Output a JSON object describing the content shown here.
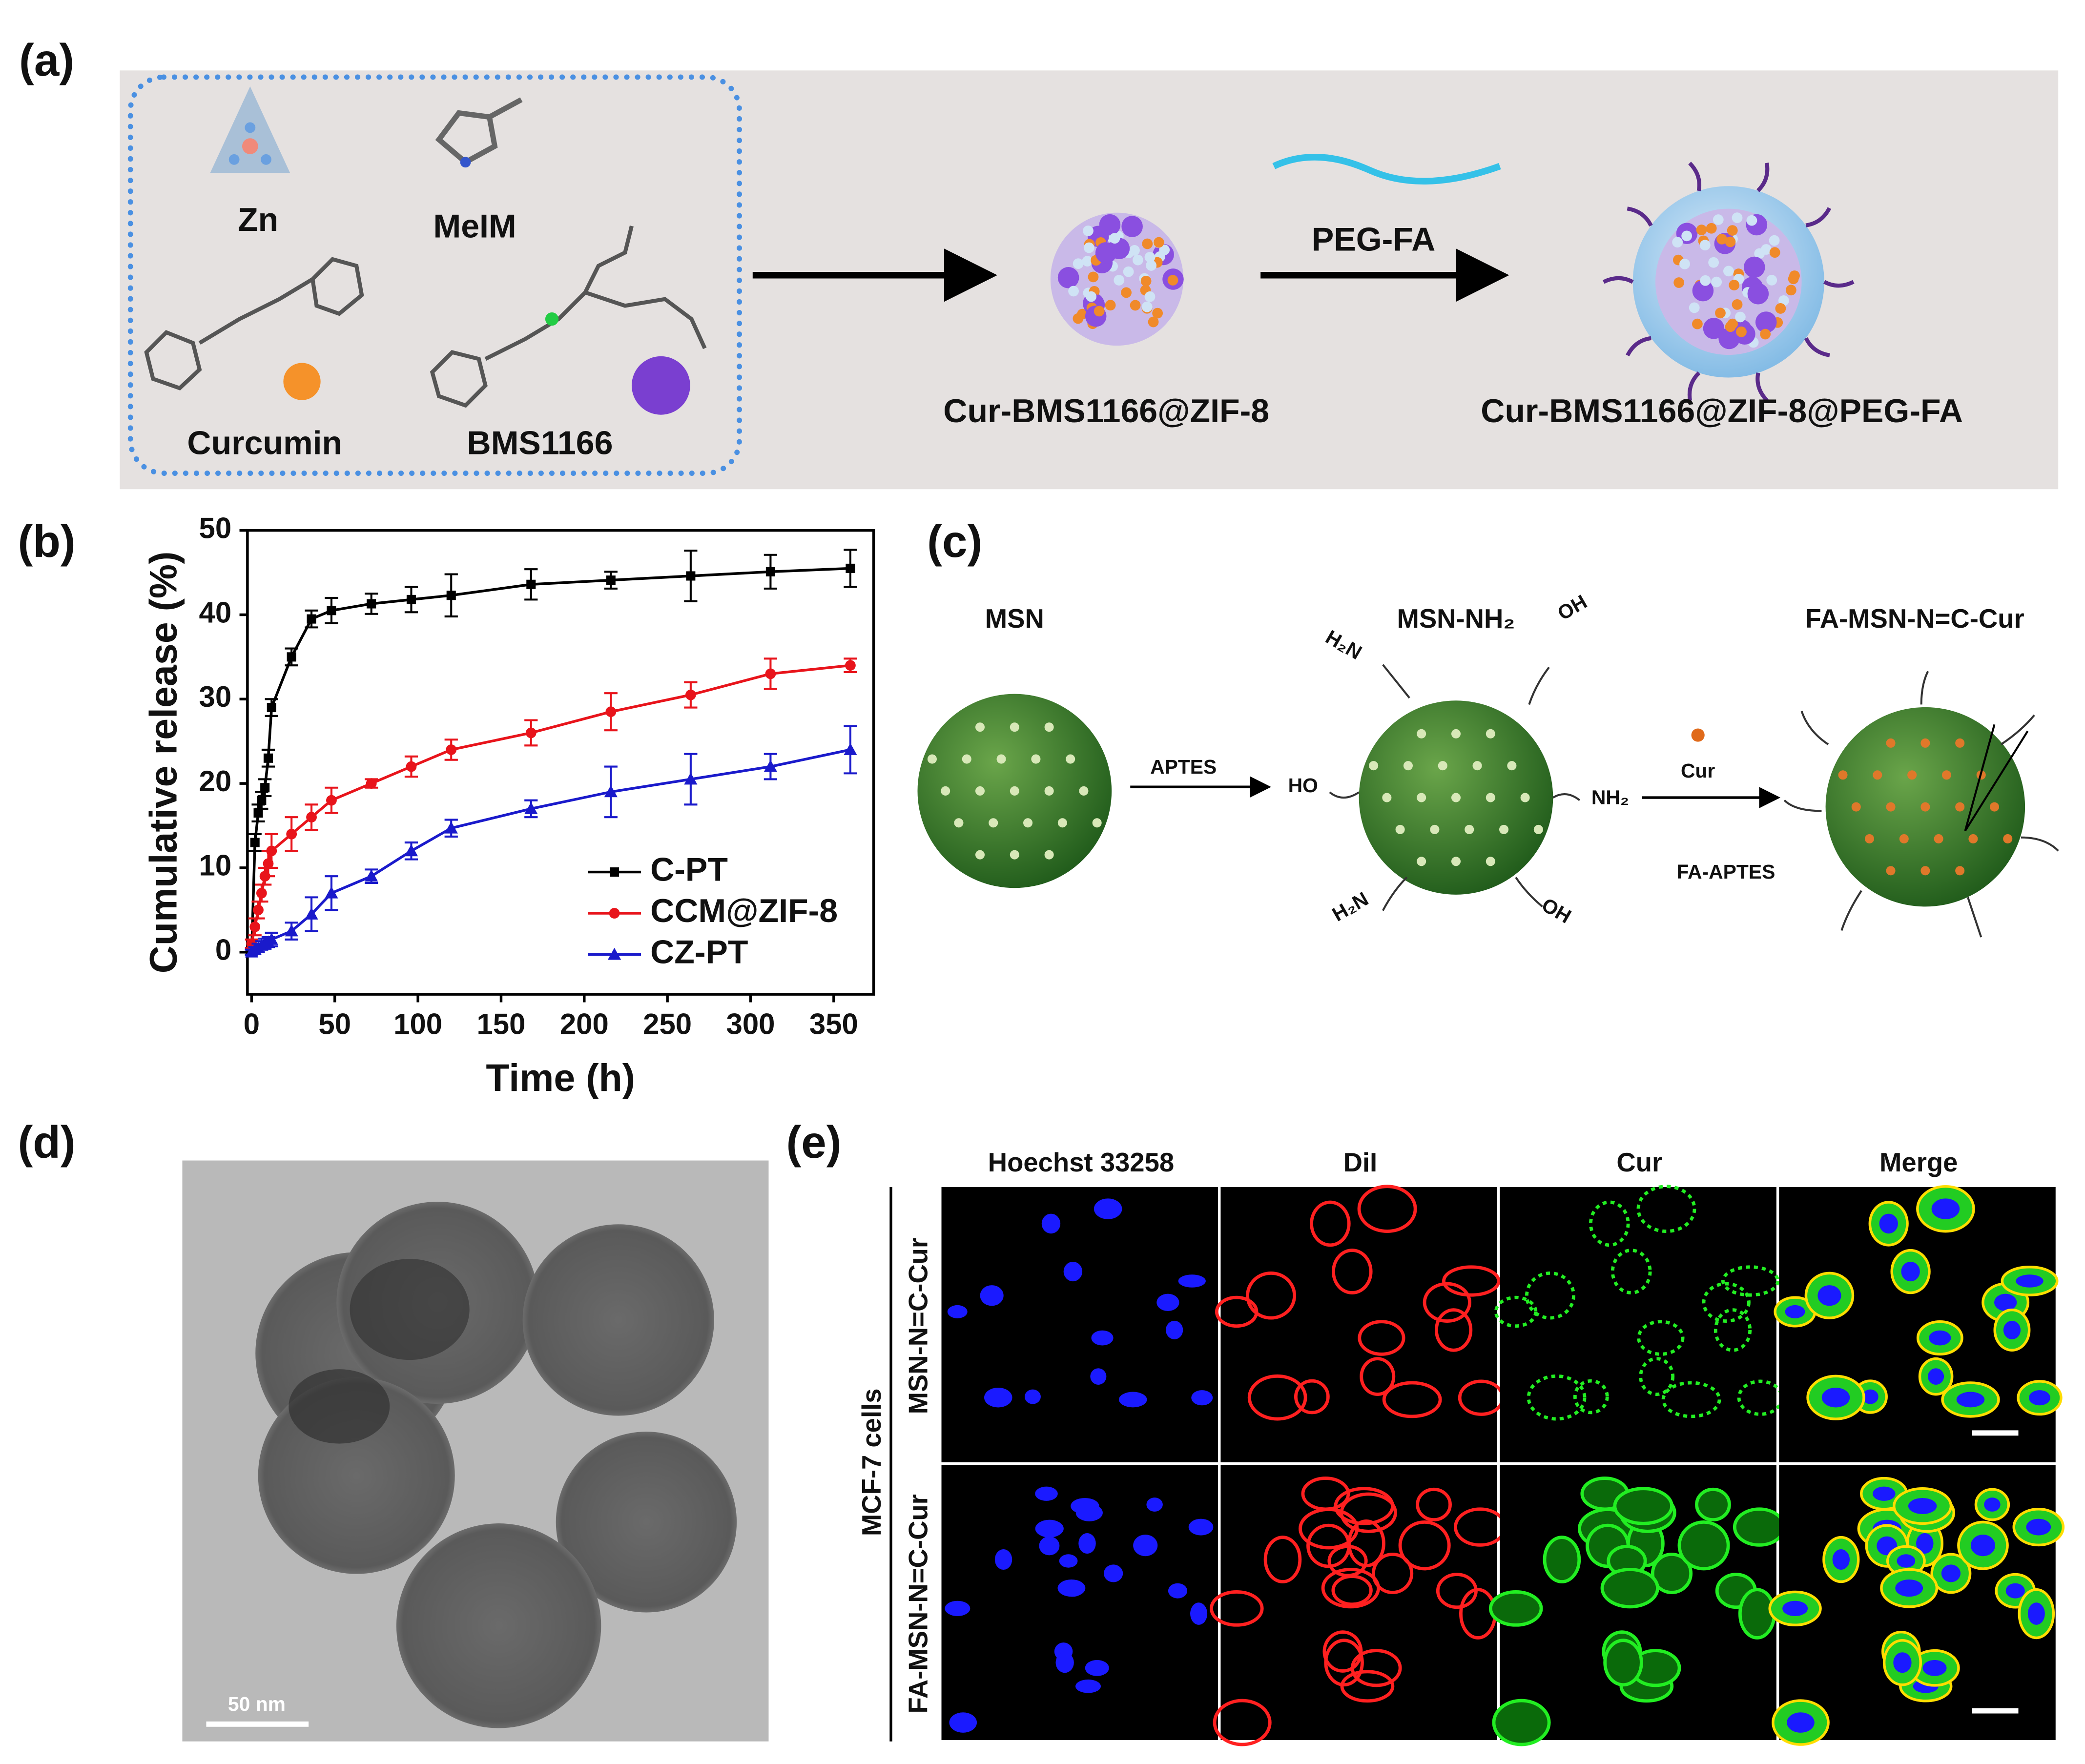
{
  "panels": {
    "a": {
      "label": "(a)",
      "zn": "Zn",
      "meim": "MeIM",
      "curcumin": "Curcumin",
      "bms1166": "BMS1166",
      "peg_fa": "PEG-FA",
      "product1": "Cur-BMS1166@ZIF-8",
      "product2": "Cur-BMS1166@ZIF-8@PEG-FA"
    },
    "b": {
      "label": "(b)"
    },
    "c": {
      "label": "(c)",
      "msn": "MSN",
      "msn_nh2": "MSN-NH₂",
      "fa_msn": "FA-MSN-N=C-Cur",
      "aptes": "APTES",
      "h2n_top": "H₂N",
      "oh_top": "OH",
      "ho_left": "HO",
      "nh2_right": "NH₂",
      "h2n_bottom": "H₂N",
      "oh_bottom": "OH",
      "cur": "Cur",
      "fa_aptes": "FA-APTES"
    },
    "d": {
      "label": "(d)",
      "scale_bar": "50 nm"
    },
    "e": {
      "label": "(e)",
      "columns": [
        "Hoechst 33258",
        "DiI",
        "Cur",
        "Merge"
      ],
      "rows": [
        "MSN-N=C-Cur",
        "FA-MSN-N=C-Cur"
      ],
      "side_label": "MCF-7 cells"
    }
  },
  "chart_data": {
    "type": "line",
    "xlabel": "Time (h)",
    "ylabel": "Cumulative release (%)",
    "x": [
      0,
      2,
      4,
      6,
      8,
      10,
      12,
      24,
      36,
      48,
      72,
      96,
      120,
      168,
      216,
      264,
      312,
      360
    ],
    "series": [
      {
        "name": "C-PT",
        "color": "#000000",
        "marker": "square",
        "values": [
          0,
          13,
          16.5,
          18,
          19.5,
          23,
          29,
          35,
          39.5,
          40.5,
          41.3,
          41.8,
          42.3,
          43.6,
          44.1,
          44.6,
          45.1,
          45.5
        ],
        "errors": [
          0.3,
          1,
          1,
          1,
          1,
          1,
          1,
          1,
          1,
          1.5,
          1.2,
          1.5,
          2.5,
          1.8,
          1,
          3,
          2,
          2.2
        ]
      },
      {
        "name": "CCM@ZIF-8",
        "color": "#e8141b",
        "marker": "circle",
        "values": [
          1,
          3,
          5,
          7,
          9,
          10.5,
          12,
          14,
          16,
          18,
          20,
          22,
          24,
          26,
          28.5,
          30.5,
          33,
          34
        ],
        "errors": [
          0.5,
          1,
          1,
          1,
          1,
          1.5,
          2,
          2,
          1.5,
          1.5,
          0.5,
          1.2,
          1.2,
          1.5,
          2.2,
          1.5,
          1.8,
          0.8
        ]
      },
      {
        "name": "CZ-PT",
        "color": "#1a1acb",
        "marker": "triangle",
        "values": [
          0,
          0.3,
          0.5,
          0.8,
          1,
          1.2,
          1.5,
          2.5,
          4.5,
          7,
          9,
          12,
          14.7,
          17,
          19,
          20.5,
          22,
          24
        ],
        "errors": [
          0.3,
          0.3,
          0.5,
          0.5,
          0.6,
          0.6,
          0.8,
          1,
          2,
          2,
          0.8,
          1,
          1,
          1,
          3,
          3,
          1.5,
          2.8
        ]
      }
    ],
    "xlim": [
      -2.5,
      374
    ],
    "xticks": [
      0,
      50,
      100,
      150,
      200,
      250,
      300,
      350
    ],
    "ylim": [
      -5,
      50
    ],
    "yticks": [
      0,
      10,
      20,
      30,
      40,
      50
    ],
    "grid": false,
    "legend": "lower right"
  }
}
